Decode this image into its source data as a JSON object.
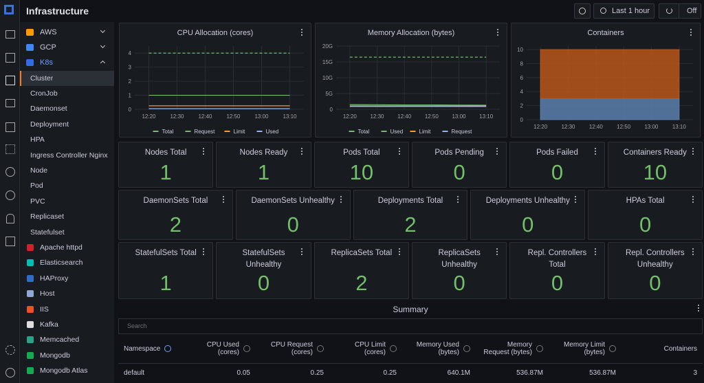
{
  "header": {
    "title": "Infrastructure",
    "time_range": "Last 1 hour",
    "refresh": "Off"
  },
  "sidebar": {
    "providers": [
      "AWS",
      "GCP",
      "K8s"
    ],
    "k8s_items": [
      "Cluster",
      "CronJob",
      "Daemonset",
      "Deployment",
      "HPA",
      "Ingress Controller Nginx",
      "Node",
      "Pod",
      "PVC",
      "Replicaset",
      "Statefulset"
    ],
    "integrations": [
      "Apache httpd",
      "Elasticsearch",
      "HAProxy",
      "Host",
      "IIS",
      "Kafka",
      "Memcached",
      "Mongodb",
      "Mongodb Atlas"
    ]
  },
  "chart_data": [
    {
      "type": "line",
      "title": "CPU Allocation (cores)",
      "x": [
        "12:20",
        "12:30",
        "12:40",
        "12:50",
        "13:00",
        "13:10"
      ],
      "ylim": [
        0,
        4.5
      ],
      "yticks": [
        0,
        1,
        2,
        3,
        4
      ],
      "grid": true,
      "legend": "bottom",
      "series": [
        {
          "name": "Total",
          "color": "#73bf69",
          "dashed": true,
          "values": [
            4,
            4,
            4,
            4,
            4,
            4
          ]
        },
        {
          "name": "Request",
          "color": "#73bf69",
          "values": [
            1,
            1,
            1,
            1,
            1,
            1
          ]
        },
        {
          "name": "Limit",
          "color": "#ff9830",
          "values": [
            0.25,
            0.25,
            0.25,
            0.25,
            0.25,
            0.25
          ]
        },
        {
          "name": "Used",
          "color": "#8ab8ff",
          "values": [
            0.05,
            0.05,
            0.05,
            0.05,
            0.05,
            0.05
          ]
        }
      ]
    },
    {
      "type": "line",
      "title": "Memory Allocation (bytes)",
      "x": [
        "12:20",
        "12:30",
        "12:40",
        "12:50",
        "13:00",
        "13:10"
      ],
      "ylim": [
        0,
        20000000000
      ],
      "yticks": [
        {
          "value": 0,
          "label": "0"
        },
        {
          "value": 5000000000,
          "label": "5G"
        },
        {
          "value": 10000000000,
          "label": "10G"
        },
        {
          "value": 15000000000,
          "label": "15G"
        },
        {
          "value": 20000000000,
          "label": "20G"
        }
      ],
      "grid": true,
      "legend": "bottom",
      "series": [
        {
          "name": "Total",
          "color": "#73bf69",
          "dashed": true,
          "values": [
            16500000000,
            16500000000,
            16500000000,
            16500000000,
            16500000000,
            16500000000
          ]
        },
        {
          "name": "Used",
          "color": "#73bf69",
          "values": [
            1500000000,
            1450000000,
            1400000000,
            1400000000,
            1350000000,
            1300000000
          ]
        },
        {
          "name": "Limit",
          "color": "#ff9830",
          "values": [
            1100000000,
            1100000000,
            1100000000,
            1100000000,
            1100000000,
            1100000000
          ]
        },
        {
          "name": "Request",
          "color": "#8ab8ff",
          "values": [
            900000000,
            900000000,
            900000000,
            900000000,
            900000000,
            900000000
          ]
        }
      ]
    },
    {
      "type": "stacked_area",
      "title": "Containers",
      "x": [
        "12:20",
        "12:30",
        "12:40",
        "12:50",
        "13:00",
        "13:10"
      ],
      "ylim": [
        0,
        10.5
      ],
      "yticks": [
        0,
        2,
        4,
        6,
        8,
        10
      ],
      "grid": true,
      "series": [
        {
          "color": "#5b7fad",
          "values": [
            3,
            3,
            3,
            3,
            3,
            3
          ]
        },
        {
          "color": "#b9561b",
          "values": [
            7,
            7,
            7,
            7,
            7,
            7
          ]
        }
      ]
    }
  ],
  "stats": [
    [
      {
        "title": "Nodes Total",
        "value": 1
      },
      {
        "title": "Nodes Ready",
        "value": 1
      },
      {
        "title": "Pods Total",
        "value": 10
      },
      {
        "title": "Pods Pending",
        "value": 0
      },
      {
        "title": "Pods Failed",
        "value": 0
      },
      {
        "title": "Containers Ready",
        "value": 10
      }
    ],
    [
      {
        "title": "DaemonSets Total",
        "value": 2
      },
      {
        "title": "DaemonSets Unhealthy",
        "value": 0
      },
      {
        "title": "Deployments Total",
        "value": 2
      },
      {
        "title": "Deployments Unhealthy",
        "value": 0
      },
      {
        "title": "HPAs Total",
        "value": 0
      }
    ],
    [
      {
        "title": "StatefulSets Total",
        "value": 1
      },
      {
        "title": "StatefulSets Unhealthy",
        "value": 0
      },
      {
        "title": "ReplicaSets Total",
        "value": 2
      },
      {
        "title": "ReplicaSets Unhealthy",
        "value": 0
      },
      {
        "title": "Repl. Controllers Total",
        "value": 0
      },
      {
        "title": "Repl. Controllers Unhealthy",
        "value": 0
      }
    ]
  ],
  "summary": {
    "title": "Summary",
    "search": "Search",
    "columns": [
      "Namespace",
      "CPU Used (cores)",
      "CPU Request (cores)",
      "CPU Limit (cores)",
      "Memory Used (bytes)",
      "Memory Request (bytes)",
      "Memory Limit (bytes)",
      "Containers"
    ],
    "rows": [
      [
        "default",
        0.05,
        0.25,
        0.25,
        "640.1M",
        "536.87M",
        "536.87M",
        3
      ]
    ]
  }
}
